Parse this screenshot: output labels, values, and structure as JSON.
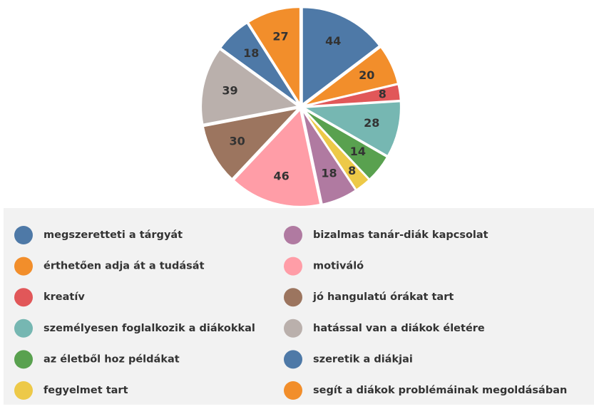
{
  "chart_data": {
    "type": "pie",
    "categories": [
      "megszeretteti a tárgyát",
      "érthetően adja át a tudását",
      "kreatív",
      "személyesen foglalkozik a diákokkal",
      "az életből hoz példákat",
      "fegyelmet tart",
      "bizalmas tanár-diák kapcsolat",
      "motiváló",
      "jó hangulatú órákat tart",
      "hatással van a diákok életére",
      "szeretik a diákjai",
      "segít a diákok problémáinak megoldásában"
    ],
    "values": [
      44,
      20,
      8,
      28,
      14,
      8,
      18,
      46,
      30,
      39,
      18,
      27
    ],
    "colors": [
      "#4e79a7",
      "#f28e2b",
      "#e15759",
      "#76b7b2",
      "#59a14f",
      "#edc948",
      "#b07aa1",
      "#ff9da7",
      "#9c755f",
      "#bab0ac",
      "#4e79a7",
      "#f28e2b"
    ],
    "legend": "bottom"
  }
}
